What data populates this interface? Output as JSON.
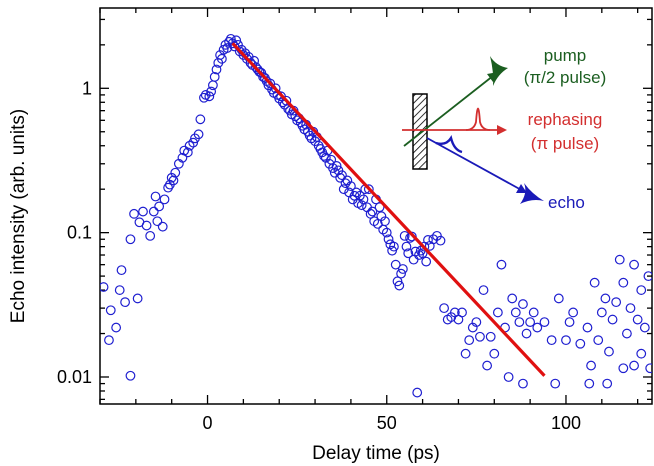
{
  "chart_data": {
    "type": "scatter",
    "xlabel": "Delay time (ps)",
    "ylabel": "Echo intensity (arb. units)",
    "xlim": [
      -30,
      124
    ],
    "ylim": [
      0.0065,
      3.6
    ],
    "yscale": "log",
    "grid": false,
    "x_ticks": [
      {
        "value": 0,
        "label": "0"
      },
      {
        "value": 50,
        "label": "50"
      },
      {
        "value": 100,
        "label": "100"
      }
    ],
    "y_ticks": [
      {
        "value": 0.01,
        "label": "0.01"
      },
      {
        "value": 0.1,
        "label": "0.1"
      },
      {
        "value": 1,
        "label": "1"
      }
    ],
    "series": [
      {
        "kind": "markers",
        "marker": "open-circle",
        "color": "#1f1fd0",
        "points": [
          [
            -29,
            0.042
          ],
          [
            -27,
            0.029
          ],
          [
            -25.5,
            0.022
          ],
          [
            -24.5,
            0.04
          ],
          [
            -24,
            0.055
          ],
          [
            -23,
            0.033
          ],
          [
            -21.5,
            0.09
          ],
          [
            -21.5,
            0.0102
          ],
          [
            -20.5,
            0.135
          ],
          [
            -19.5,
            0.035
          ],
          [
            -19,
            0.118
          ],
          [
            -18,
            0.14
          ],
          [
            -17,
            0.112
          ],
          [
            -16,
            0.095
          ],
          [
            -15,
            0.14
          ],
          [
            -14.5,
            0.178
          ],
          [
            -14,
            0.12
          ],
          [
            -13.5,
            0.152
          ],
          [
            -12.5,
            0.11
          ],
          [
            -12,
            0.17
          ],
          [
            -11,
            0.205
          ],
          [
            -10.5,
            0.215
          ],
          [
            -10,
            0.24
          ],
          [
            -9.5,
            0.23
          ],
          [
            -9,
            0.26
          ],
          [
            -8,
            0.3
          ],
          [
            -7,
            0.33
          ],
          [
            -6.5,
            0.37
          ],
          [
            -5.5,
            0.36
          ],
          [
            -5,
            0.4
          ],
          [
            -4,
            0.42
          ],
          [
            -3.5,
            0.45
          ],
          [
            -2.5,
            0.48
          ],
          [
            -2,
            0.61
          ],
          [
            -1,
            0.86
          ],
          [
            -0.5,
            0.9
          ],
          [
            0.5,
            0.88
          ],
          [
            1,
            0.95
          ],
          [
            1.5,
            1.05
          ],
          [
            2,
            1.2
          ],
          [
            2.5,
            1.35
          ],
          [
            3,
            1.5
          ],
          [
            3.5,
            1.7
          ],
          [
            4,
            1.6
          ],
          [
            4.5,
            1.85
          ],
          [
            5,
            2.0
          ],
          [
            5.5,
            1.9
          ],
          [
            6,
            2.1
          ],
          [
            6.5,
            2.2
          ],
          [
            7,
            2.05
          ],
          [
            7.5,
            1.95
          ],
          [
            8,
            2.15
          ],
          [
            8.5,
            2.0
          ],
          [
            9,
            1.8
          ],
          [
            9.5,
            1.85
          ],
          [
            10,
            1.7
          ],
          [
            10.5,
            1.75
          ],
          [
            11,
            1.6
          ],
          [
            11.5,
            1.65
          ],
          [
            12,
            1.5
          ],
          [
            12.5,
            1.45
          ],
          [
            13,
            1.55
          ],
          [
            13.5,
            1.4
          ],
          [
            14,
            1.35
          ],
          [
            14.5,
            1.3
          ],
          [
            15,
            1.28
          ],
          [
            15.5,
            1.2
          ],
          [
            16,
            1.18
          ],
          [
            16.5,
            1.12
          ],
          [
            17,
            1.05
          ],
          [
            17.5,
            1.08
          ],
          [
            18,
            0.98
          ],
          [
            18.5,
            0.93
          ],
          [
            19,
            1.0
          ],
          [
            19.5,
            0.9
          ],
          [
            20,
            0.85
          ],
          [
            20.5,
            0.88
          ],
          [
            21,
            0.8
          ],
          [
            21.5,
            0.77
          ],
          [
            22,
            0.82
          ],
          [
            22.5,
            0.72
          ],
          [
            23,
            0.7
          ],
          [
            23.5,
            0.66
          ],
          [
            24,
            0.7
          ],
          [
            24.5,
            0.64
          ],
          [
            25,
            0.6
          ],
          [
            25.5,
            0.62
          ],
          [
            26,
            0.58
          ],
          [
            26.5,
            0.55
          ],
          [
            27,
            0.52
          ],
          [
            27.5,
            0.56
          ],
          [
            28,
            0.5
          ],
          [
            28.5,
            0.47
          ],
          [
            29,
            0.45
          ],
          [
            29.5,
            0.5
          ],
          [
            30,
            0.43
          ],
          [
            30.5,
            0.46
          ],
          [
            31,
            0.4
          ],
          [
            31.5,
            0.38
          ],
          [
            32,
            0.36
          ],
          [
            32.5,
            0.34
          ],
          [
            33,
            0.33
          ],
          [
            33.5,
            0.37
          ],
          [
            34,
            0.3
          ],
          [
            34.5,
            0.32
          ],
          [
            35,
            0.28
          ],
          [
            35.5,
            0.26
          ],
          [
            36,
            0.29
          ],
          [
            36.5,
            0.27
          ],
          [
            37,
            0.24
          ],
          [
            37.5,
            0.25
          ],
          [
            38,
            0.2
          ],
          [
            38.5,
            0.22
          ],
          [
            39,
            0.23
          ],
          [
            39.5,
            0.19
          ],
          [
            40,
            0.21
          ],
          [
            40.5,
            0.17
          ],
          [
            41,
            0.18
          ],
          [
            41.5,
            0.19
          ],
          [
            42,
            0.16
          ],
          [
            42.5,
            0.18
          ],
          [
            43,
            0.155
          ],
          [
            43.5,
            0.17
          ],
          [
            44,
            0.2
          ],
          [
            44.5,
            0.15
          ],
          [
            45,
            0.2
          ],
          [
            45.5,
            0.135
          ],
          [
            46,
            0.14
          ],
          [
            46.5,
            0.12
          ],
          [
            47,
            0.17
          ],
          [
            47.5,
            0.115
          ],
          [
            48,
            0.15
          ],
          [
            48.5,
            0.13
          ],
          [
            49,
            0.105
          ],
          [
            49.5,
            0.12
          ],
          [
            50,
            0.1
          ],
          [
            50.5,
            0.09
          ],
          [
            51,
            0.083
          ],
          [
            51.5,
            0.075
          ],
          [
            52,
            0.08
          ],
          [
            52.5,
            0.06
          ],
          [
            53,
            0.046
          ],
          [
            53.5,
            0.043
          ],
          [
            54,
            0.052
          ],
          [
            54.5,
            0.056
          ],
          [
            55,
            0.095
          ],
          [
            55.5,
            0.08
          ],
          [
            56,
            0.072
          ],
          [
            56.5,
            0.092
          ],
          [
            57,
            0.094
          ],
          [
            57.5,
            0.065
          ],
          [
            58,
            0.074
          ],
          [
            58.5,
            0.0078
          ],
          [
            59,
            0.07
          ],
          [
            59.5,
            0.075
          ],
          [
            60,
            0.072
          ],
          [
            60.5,
            0.08
          ],
          [
            61,
            0.063
          ],
          [
            61.5,
            0.089
          ],
          [
            62,
            0.081
          ],
          [
            63,
            0.09
          ],
          [
            64,
            0.095
          ],
          [
            65,
            0.088
          ],
          [
            66,
            0.03
          ],
          [
            67,
            0.025
          ],
          [
            68,
            0.026
          ],
          [
            69,
            0.028
          ],
          [
            70,
            0.025
          ],
          [
            71,
            0.028
          ],
          [
            72,
            0.0145
          ],
          [
            73,
            0.018
          ],
          [
            74,
            0.022
          ],
          [
            75,
            0.024
          ],
          [
            76,
            0.019
          ],
          [
            77,
            0.04
          ],
          [
            78,
            0.012
          ],
          [
            79,
            0.019
          ],
          [
            80,
            0.0145
          ],
          [
            81,
            0.028
          ],
          [
            82,
            0.06
          ],
          [
            83,
            0.022
          ],
          [
            84,
            0.01
          ],
          [
            85,
            0.035
          ],
          [
            86,
            0.028
          ],
          [
            87,
            0.024
          ],
          [
            88,
            0.032
          ],
          [
            89,
            0.02
          ],
          [
            90,
            0.024
          ],
          [
            91,
            0.028
          ],
          [
            92,
            0.022
          ],
          [
            94,
            0.024
          ],
          [
            96,
            0.018
          ],
          [
            98,
            0.035
          ],
          [
            100,
            0.018
          ],
          [
            101,
            0.024
          ],
          [
            102,
            0.028
          ],
          [
            104,
            0.017
          ],
          [
            106,
            0.022
          ],
          [
            107,
            0.012
          ],
          [
            108,
            0.045
          ],
          [
            109,
            0.018
          ],
          [
            110,
            0.028
          ],
          [
            111,
            0.035
          ],
          [
            112,
            0.015
          ],
          [
            113,
            0.025
          ],
          [
            114,
            0.033
          ],
          [
            115,
            0.065
          ],
          [
            116,
            0.045
          ],
          [
            117,
            0.02
          ],
          [
            118,
            0.03
          ],
          [
            119,
            0.06
          ],
          [
            120,
            0.025
          ],
          [
            121,
            0.04
          ],
          [
            122,
            0.022
          ],
          [
            123,
            0.05
          ],
          [
            -27.5,
            0.018
          ],
          [
            119,
            0.012
          ],
          [
            121,
            0.0145
          ],
          [
            106.5,
            0.009
          ],
          [
            111.5,
            0.009
          ],
          [
            116,
            0.0115
          ],
          [
            123.5,
            0.0115
          ],
          [
            88,
            0.009
          ],
          [
            97,
            0.009
          ]
        ]
      },
      {
        "kind": "line",
        "style": "solid",
        "color": "#e01010",
        "points": [
          [
            7,
            2.05
          ],
          [
            94,
            0.0102
          ]
        ]
      }
    ],
    "annotations": {
      "pump": {
        "text": "pump",
        "color": "#1b5e20"
      },
      "pump_pulse": {
        "text": "(π/2 pulse)",
        "color": "#1b5e20"
      },
      "rephasing": {
        "text": "rephasing",
        "color": "#d32f2f"
      },
      "rephasing_pulse": {
        "text": "(π pulse)",
        "color": "#d32f2f"
      },
      "echo": {
        "text": "echo",
        "color": "#1a1ab8"
      }
    }
  }
}
